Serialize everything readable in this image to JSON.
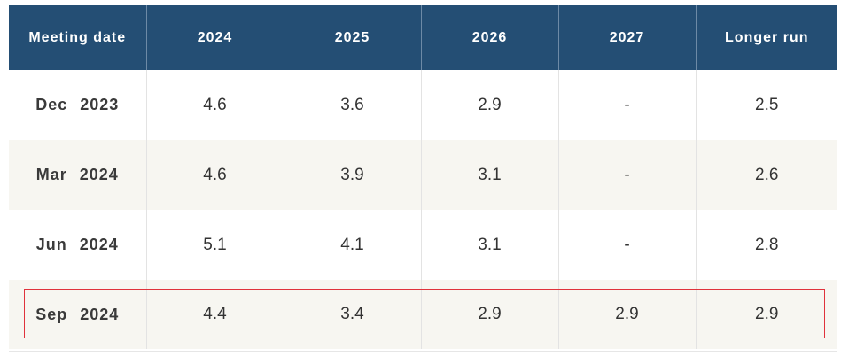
{
  "table": {
    "headers": [
      "Meeting date",
      "2024",
      "2025",
      "2026",
      "2027",
      "Longer run"
    ],
    "rows": [
      [
        "Dec  2023",
        "4.6",
        "3.6",
        "2.9",
        "-",
        "2.5"
      ],
      [
        "Mar  2024",
        "4.6",
        "3.9",
        "3.1",
        "-",
        "2.6"
      ],
      [
        "Jun  2024",
        "5.1",
        "4.1",
        "3.1",
        "-",
        "2.8"
      ],
      [
        "Sep  2024",
        "4.4",
        "3.4",
        "2.9",
        "2.9",
        "2.9"
      ]
    ],
    "highlighted_row_index": 3
  },
  "colors": {
    "header_bg": "#244e74",
    "header_text": "#ffffff",
    "stripe_bg": "#f7f6f1",
    "highlight_border": "#e0323c"
  }
}
